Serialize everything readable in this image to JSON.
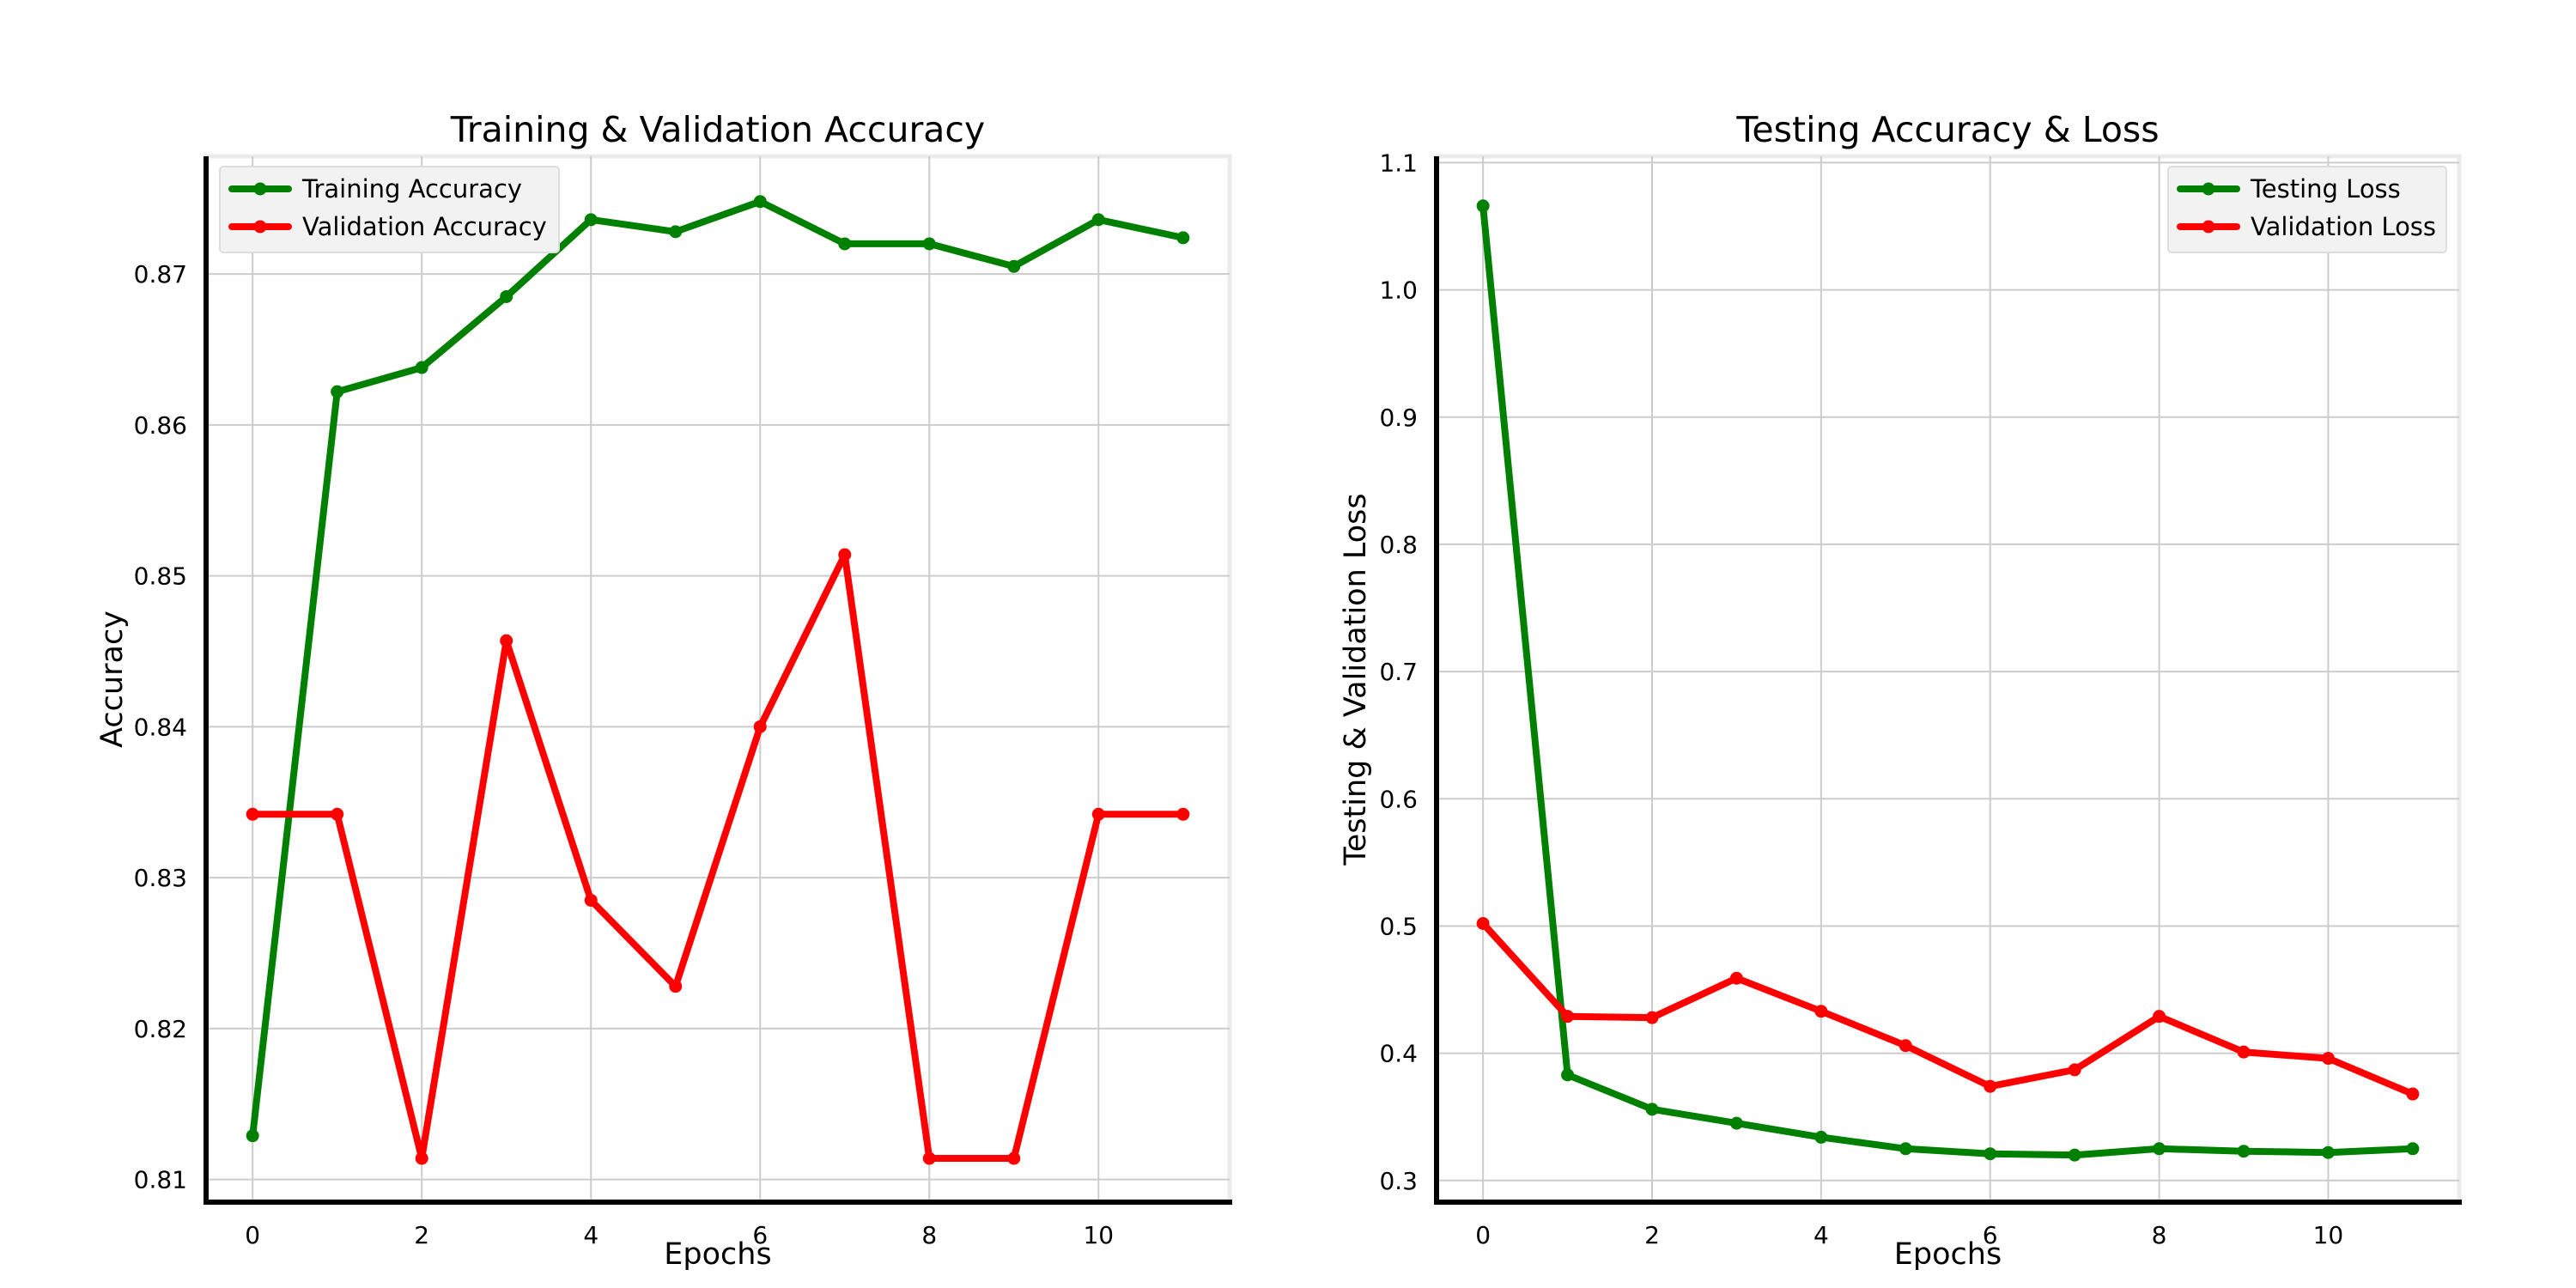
{
  "chart_data": [
    {
      "type": "line",
      "title": "Training & Validation Accuracy",
      "xlabel": "Epochs",
      "ylabel": "Accuracy",
      "x": [
        0,
        1,
        2,
        3,
        4,
        5,
        6,
        7,
        8,
        9,
        10,
        11
      ],
      "xlim": [
        -0.55,
        11.55
      ],
      "ylim": [
        0.8085,
        0.8778
      ],
      "xticks": [
        0,
        2,
        4,
        6,
        8,
        10
      ],
      "xtick_labels": [
        "0",
        "2",
        "4",
        "6",
        "8",
        "10"
      ],
      "yticks": [
        0.81,
        0.82,
        0.83,
        0.84,
        0.85,
        0.86,
        0.87
      ],
      "ytick_labels": [
        "0.81",
        "0.82",
        "0.83",
        "0.84",
        "0.85",
        "0.86",
        "0.87"
      ],
      "grid": true,
      "legend_position": "upper-left",
      "series": [
        {
          "name": "Training Accuracy",
          "color": "#008000",
          "values": [
            0.8129,
            0.8622,
            0.8638,
            0.8685,
            0.8736,
            0.8728,
            0.8748,
            0.872,
            0.872,
            0.8705,
            0.8736,
            0.8724
          ]
        },
        {
          "name": "Validation Accuracy",
          "color": "#ff0000",
          "values": [
            0.8342,
            0.8342,
            0.8114,
            0.8457,
            0.8285,
            0.8228,
            0.84,
            0.8514,
            0.8114,
            0.8114,
            0.8342,
            0.8342
          ]
        }
      ]
    },
    {
      "type": "line",
      "title": "Testing Accuracy & Loss",
      "xlabel": "Epochs",
      "ylabel": "Testing & Validation Loss",
      "x": [
        0,
        1,
        2,
        3,
        4,
        5,
        6,
        7,
        8,
        9,
        10,
        11
      ],
      "xlim": [
        -0.55,
        11.55
      ],
      "ylim": [
        0.283,
        1.105
      ],
      "xticks": [
        0,
        2,
        4,
        6,
        8,
        10
      ],
      "xtick_labels": [
        "0",
        "2",
        "4",
        "6",
        "8",
        "10"
      ],
      "yticks": [
        0.3,
        0.4,
        0.5,
        0.6,
        0.7,
        0.8,
        0.9,
        1.0,
        1.1
      ],
      "ytick_labels": [
        "0.3",
        "0.4",
        "0.5",
        "0.6",
        "0.7",
        "0.8",
        "0.9",
        "1.0",
        "1.1"
      ],
      "grid": true,
      "legend_position": "upper-right",
      "series": [
        {
          "name": "Testing Loss",
          "color": "#008000",
          "values": [
            1.066,
            0.383,
            0.356,
            0.345,
            0.334,
            0.325,
            0.321,
            0.32,
            0.325,
            0.323,
            0.322,
            0.325
          ]
        },
        {
          "name": "Validation Loss",
          "color": "#ff0000",
          "values": [
            0.502,
            0.429,
            0.428,
            0.459,
            0.433,
            0.406,
            0.374,
            0.387,
            0.429,
            0.401,
            0.396,
            0.368
          ]
        }
      ]
    }
  ]
}
